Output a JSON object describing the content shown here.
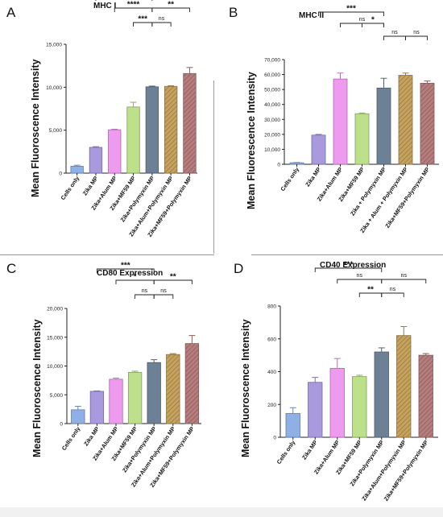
{
  "panels": [
    {
      "letter": "A",
      "title": "MHC  I",
      "ylabel": "Mean Fluoroscence Intensity"
    },
    {
      "letter": "B",
      "title": "MHC II",
      "ylabel": "Mean Fluorescence Intensity"
    },
    {
      "letter": "C",
      "title": "CD80 Expression",
      "ylabel": "Mean Fluoroscence Intensity"
    },
    {
      "letter": "D",
      "title": "CD40 Expression",
      "ylabel": "Mean Fluoroscence Intensity"
    }
  ],
  "colors": {
    "cells_only": "#8fb0e6",
    "zika": "#a999de",
    "alum": "#ee9aee",
    "mf59": "#bde08a",
    "polymyxin": "#6c8196",
    "alum_poly": "#c7a25c",
    "mf59_poly": "#b77d7d",
    "sig_line": "#222222"
  },
  "chart_data": [
    {
      "type": "bar",
      "title": "MHC  I",
      "ylabel": "Mean Fluoroscence Intensity",
      "ylim": [
        0,
        15000
      ],
      "yticks": [
        0,
        5000,
        10000,
        15000
      ],
      "ytick_labels": [
        "0",
        "5,000",
        "10,000",
        "15,000"
      ],
      "categories": [
        "Cells only",
        "Zika MP",
        "Zika+Alum MP",
        "Zika+MF59 MP",
        "Zika+Polymyxin MP",
        "Zika+Alum+Polymyxin MP",
        "Zika+MF59+Polymyxin MP"
      ],
      "values": [
        800,
        3000,
        5050,
        7700,
        10050,
        10100,
        11600
      ],
      "errors": [
        120,
        80,
        60,
        550,
        80,
        80,
        700
      ],
      "significance": [
        {
          "from": 1,
          "to": 4,
          "label": "****"
        },
        {
          "from": 2,
          "to": 4,
          "label": "****"
        },
        {
          "from": 4,
          "to": 6,
          "label": "**"
        },
        {
          "from": 3,
          "to": 4,
          "label": "***"
        },
        {
          "from": 4,
          "to": 5,
          "label": "ns"
        }
      ]
    },
    {
      "type": "bar",
      "title": "MHC II",
      "ylabel": "Mean Fluorescence Intensity",
      "ylim": [
        0,
        70000
      ],
      "yticks": [
        0,
        10000,
        20000,
        30000,
        40000,
        50000,
        60000,
        70000
      ],
      "ytick_labels": [
        "0",
        "10,000",
        "20,000",
        "30,000",
        "40,000",
        "50,000",
        "60,000",
        "70,000"
      ],
      "categories": [
        "Cells only",
        "Zika MP",
        "Zika+Alum MP",
        "Zika+MF59 MP",
        "Zika + Polymyxin MP",
        "Zika + Alum + Polymyxin MP",
        "Zika+MF59+Polymyxin MP"
      ],
      "values": [
        1000,
        19500,
        57000,
        33800,
        51000,
        59500,
        54200
      ],
      "errors": [
        200,
        500,
        4000,
        500,
        6500,
        1500,
        1500
      ],
      "significance": [
        {
          "from": 1,
          "to": 4,
          "label": "***"
        },
        {
          "from": 2,
          "to": 4,
          "label": "ns"
        },
        {
          "from": 3,
          "to": 4,
          "label": "*"
        },
        {
          "from": 4,
          "to": 5,
          "label": "ns"
        },
        {
          "from": 5,
          "to": 6,
          "label": "ns"
        }
      ]
    },
    {
      "type": "bar",
      "title": "CD80 Expression",
      "ylabel": "Mean Fluoroscence Intensity",
      "ylim": [
        0,
        20000
      ],
      "yticks": [
        0,
        5000,
        10000,
        15000,
        20000
      ],
      "ytick_labels": [
        "0",
        "5,000",
        "10,000",
        "15,000",
        "20,000"
      ],
      "categories": [
        "Cells only",
        "Zika MP",
        "Zika+Alum MP",
        "Zika+MF59 MP",
        "Zika+Polymyxin MP",
        "Zika+Alum+Polymyxin MP",
        "Zika+MF59+Polymyxin MP"
      ],
      "values": [
        2400,
        5600,
        7700,
        8900,
        10600,
        12000,
        13900
      ],
      "errors": [
        600,
        80,
        200,
        200,
        500,
        150,
        1400
      ],
      "significance": [
        {
          "from": 1,
          "to": 4,
          "label": "***"
        },
        {
          "from": 2,
          "to": 4,
          "label": "*"
        },
        {
          "from": 4,
          "to": 6,
          "label": "**"
        },
        {
          "from": 3,
          "to": 4,
          "label": "ns"
        },
        {
          "from": 4,
          "to": 5,
          "label": "ns"
        }
      ]
    },
    {
      "type": "bar",
      "title": "CD40 Expression",
      "ylabel": "Mean Fluoroscence Intensity",
      "ylim": [
        0,
        800
      ],
      "yticks": [
        0,
        200,
        400,
        600,
        800
      ],
      "ytick_labels": [
        "0",
        "200",
        "400",
        "600",
        "800"
      ],
      "categories": [
        "Cells only",
        "Zika MP",
        "Zika+Alum MP",
        "Zika+MF59 MP",
        "Zika+Polymyxin MP",
        "Zika+Alum+Polymyxin MP",
        "Zika+MF59+Polymyxin MP"
      ],
      "values": [
        145,
        335,
        420,
        370,
        520,
        620,
        500
      ],
      "errors": [
        35,
        30,
        60,
        8,
        25,
        55,
        10
      ],
      "significance": [
        {
          "from": 1,
          "to": 4,
          "label": "***"
        },
        {
          "from": 2,
          "to": 4,
          "label": "ns"
        },
        {
          "from": 4,
          "to": 6,
          "label": "ns"
        },
        {
          "from": 3,
          "to": 4,
          "label": "**"
        },
        {
          "from": 4,
          "to": 5,
          "label": "ns"
        }
      ]
    }
  ]
}
